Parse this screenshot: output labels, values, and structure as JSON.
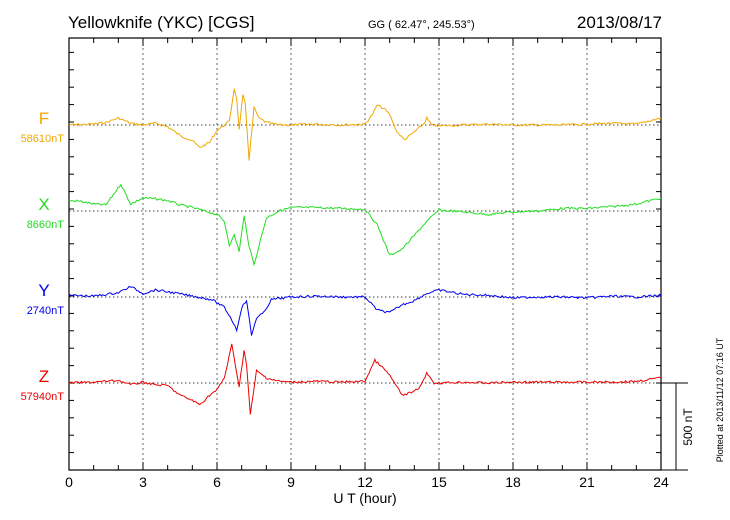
{
  "header": {
    "station": "Yellowknife (YKC)  [CGS]",
    "coords": "GG ( 62.47°, 245.53°)",
    "date": "2013/08/17"
  },
  "footer": {
    "plotted": "Plotted at 2013/11/12 07:16 UT",
    "scale_label": "500 nT"
  },
  "chart_data": {
    "type": "line",
    "title": "Yellowknife (YKC)  [CGS]",
    "xlabel": "U T (hour)",
    "xlim": [
      0,
      24
    ],
    "xticks": [
      "0",
      "3",
      "6",
      "9",
      "12",
      "15",
      "18",
      "21",
      "24"
    ],
    "scale_bar_nT": 500,
    "grid": "dotted vertical every 3 h, dotted baseline per component",
    "series": [
      {
        "name": "F",
        "baseline": "58610nT",
        "color": "#f0a800",
        "points": [
          [
            0,
            0
          ],
          [
            1,
            5
          ],
          [
            1.5,
            15
          ],
          [
            2,
            40
          ],
          [
            2.5,
            10
          ],
          [
            3,
            0
          ],
          [
            3.5,
            10
          ],
          [
            4,
            -10
          ],
          [
            4.5,
            -60
          ],
          [
            5,
            -90
          ],
          [
            5.3,
            -130
          ],
          [
            5.7,
            -100
          ],
          [
            6,
            -30
          ],
          [
            6.3,
            0
          ],
          [
            6.5,
            20
          ],
          [
            6.7,
            210
          ],
          [
            6.8,
            150
          ],
          [
            6.9,
            -30
          ],
          [
            7.05,
            170
          ],
          [
            7.15,
            120
          ],
          [
            7.3,
            -200
          ],
          [
            7.5,
            100
          ],
          [
            7.7,
            40
          ],
          [
            8,
            15
          ],
          [
            8.5,
            0
          ],
          [
            9,
            0
          ],
          [
            10,
            5
          ],
          [
            11,
            0
          ],
          [
            12,
            5
          ],
          [
            12.3,
            60
          ],
          [
            12.5,
            115
          ],
          [
            12.8,
            90
          ],
          [
            13,
            60
          ],
          [
            13.3,
            -40
          ],
          [
            13.6,
            -85
          ],
          [
            14,
            -40
          ],
          [
            14.4,
            10
          ],
          [
            14.5,
            40
          ],
          [
            14.7,
            0
          ],
          [
            15,
            -5
          ],
          [
            16,
            0
          ],
          [
            17,
            5
          ],
          [
            18,
            0
          ],
          [
            19,
            0
          ],
          [
            20,
            0
          ],
          [
            21,
            5
          ],
          [
            22,
            10
          ],
          [
            23,
            5
          ],
          [
            24,
            40
          ]
        ]
      },
      {
        "name": "X",
        "baseline": "8660nT",
        "color": "#22dd22",
        "points": [
          [
            0,
            60
          ],
          [
            0.5,
            55
          ],
          [
            1,
            40
          ],
          [
            1.5,
            35
          ],
          [
            2.1,
            155
          ],
          [
            2.5,
            40
          ],
          [
            3,
            75
          ],
          [
            3.5,
            70
          ],
          [
            4,
            60
          ],
          [
            4.5,
            35
          ],
          [
            5,
            20
          ],
          [
            5.5,
            0
          ],
          [
            6,
            -20
          ],
          [
            6.3,
            -60
          ],
          [
            6.5,
            -195
          ],
          [
            6.7,
            -140
          ],
          [
            6.9,
            -230
          ],
          [
            7.1,
            -30
          ],
          [
            7.3,
            -200
          ],
          [
            7.5,
            -310
          ],
          [
            7.7,
            -200
          ],
          [
            8,
            -40
          ],
          [
            8.5,
            0
          ],
          [
            9,
            20
          ],
          [
            10,
            20
          ],
          [
            11,
            15
          ],
          [
            12,
            10
          ],
          [
            12.5,
            -80
          ],
          [
            13,
            -255
          ],
          [
            13.5,
            -220
          ],
          [
            14,
            -140
          ],
          [
            14.5,
            -60
          ],
          [
            15,
            5
          ],
          [
            16,
            -5
          ],
          [
            17,
            -20
          ],
          [
            18,
            -5
          ],
          [
            19,
            0
          ],
          [
            20,
            15
          ],
          [
            21,
            15
          ],
          [
            22,
            25
          ],
          [
            23,
            40
          ],
          [
            24,
            75
          ]
        ]
      },
      {
        "name": "Y",
        "baseline": "2740nT",
        "color": "#0000ee",
        "points": [
          [
            0,
            10
          ],
          [
            1,
            5
          ],
          [
            2,
            25
          ],
          [
            2.5,
            60
          ],
          [
            3,
            20
          ],
          [
            3.5,
            40
          ],
          [
            4,
            30
          ],
          [
            5,
            5
          ],
          [
            5.8,
            -15
          ],
          [
            6.3,
            -60
          ],
          [
            6.6,
            -130
          ],
          [
            6.8,
            -190
          ],
          [
            7.0,
            -60
          ],
          [
            7.2,
            -20
          ],
          [
            7.4,
            -220
          ],
          [
            7.6,
            -120
          ],
          [
            7.9,
            -90
          ],
          [
            8.2,
            -15
          ],
          [
            9,
            0
          ],
          [
            10,
            5
          ],
          [
            11,
            0
          ],
          [
            12,
            0
          ],
          [
            12.5,
            -75
          ],
          [
            13,
            -90
          ],
          [
            13.5,
            -45
          ],
          [
            14,
            -20
          ],
          [
            14.5,
            20
          ],
          [
            15,
            40
          ],
          [
            16,
            15
          ],
          [
            17,
            10
          ],
          [
            18,
            -5
          ],
          [
            19,
            0
          ],
          [
            20,
            0
          ],
          [
            21,
            -5
          ],
          [
            22,
            5
          ],
          [
            23,
            0
          ],
          [
            24,
            10
          ]
        ]
      },
      {
        "name": "Z",
        "baseline": "57940nT",
        "color": "#ee0000",
        "points": [
          [
            0,
            0
          ],
          [
            1,
            5
          ],
          [
            2,
            15
          ],
          [
            2.5,
            -10
          ],
          [
            3,
            5
          ],
          [
            3.5,
            -10
          ],
          [
            4,
            -15
          ],
          [
            4.5,
            -70
          ],
          [
            5,
            -100
          ],
          [
            5.3,
            -125
          ],
          [
            5.7,
            -70
          ],
          [
            6,
            -40
          ],
          [
            6.3,
            30
          ],
          [
            6.6,
            220
          ],
          [
            6.75,
            100
          ],
          [
            6.9,
            -20
          ],
          [
            7.1,
            190
          ],
          [
            7.2,
            100
          ],
          [
            7.35,
            -185
          ],
          [
            7.6,
            70
          ],
          [
            8,
            30
          ],
          [
            8.5,
            10
          ],
          [
            9,
            5
          ],
          [
            10,
            10
          ],
          [
            11,
            5
          ],
          [
            12,
            10
          ],
          [
            12.4,
            130
          ],
          [
            12.7,
            90
          ],
          [
            13,
            45
          ],
          [
            13.5,
            -70
          ],
          [
            14,
            -50
          ],
          [
            14.3,
            -10
          ],
          [
            14.5,
            60
          ],
          [
            14.8,
            0
          ],
          [
            15,
            0
          ],
          [
            16,
            5
          ],
          [
            17,
            0
          ],
          [
            18,
            5
          ],
          [
            19,
            5
          ],
          [
            20,
            5
          ],
          [
            21,
            5
          ],
          [
            22,
            5
          ],
          [
            23,
            10
          ],
          [
            24,
            30
          ]
        ]
      }
    ]
  }
}
